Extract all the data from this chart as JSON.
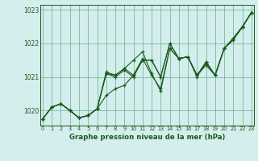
{
  "title": "Graphe pression niveau de la mer (hPa)",
  "xlim": [
    -0.3,
    23.3
  ],
  "ylim": [
    1019.55,
    1023.15
  ],
  "yticks": [
    1020,
    1021,
    1022,
    1023
  ],
  "xticks": [
    0,
    1,
    2,
    3,
    4,
    5,
    6,
    7,
    8,
    9,
    10,
    11,
    12,
    13,
    14,
    15,
    16,
    17,
    18,
    19,
    20,
    21,
    22,
    23
  ],
  "bg_color": "#d4eded",
  "grid_color": "#5aaa80",
  "line_color": "#1a5c1a",
  "lines": [
    [
      1019.75,
      1020.1,
      1020.2,
      1020.0,
      1019.78,
      1019.85,
      1020.05,
      1020.45,
      1020.65,
      1020.75,
      1021.05,
      1021.55,
      1021.05,
      1020.65,
      1021.85,
      1021.55,
      1021.6,
      1021.05,
      1021.4,
      1021.05,
      1021.85,
      1022.15,
      1022.5,
      1022.92
    ],
    [
      1019.75,
      1020.1,
      1020.2,
      1020.0,
      1019.78,
      1019.85,
      1020.05,
      1021.1,
      1021.05,
      1021.25,
      1021.5,
      1021.75,
      1021.1,
      1020.58,
      1021.85,
      1021.55,
      1021.6,
      1021.05,
      1021.35,
      1021.05,
      1021.85,
      1022.15,
      1022.5,
      1022.92
    ],
    [
      1019.75,
      1020.1,
      1020.2,
      1020.0,
      1019.78,
      1019.85,
      1020.05,
      1021.15,
      1021.05,
      1021.25,
      1021.05,
      1021.5,
      1021.5,
      1021.0,
      1022.0,
      1021.55,
      1021.6,
      1021.05,
      1021.45,
      1021.05,
      1021.85,
      1022.1,
      1022.48,
      1022.92
    ],
    [
      1019.75,
      1020.1,
      1020.2,
      1020.0,
      1019.78,
      1019.85,
      1020.05,
      1021.1,
      1021.0,
      1021.2,
      1021.0,
      1021.5,
      1021.5,
      1021.0,
      1022.0,
      1021.55,
      1021.6,
      1021.0,
      1021.45,
      1021.05,
      1021.85,
      1022.15,
      1022.48,
      1022.92
    ]
  ]
}
